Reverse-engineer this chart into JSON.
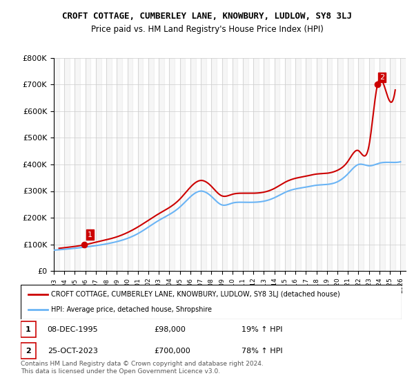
{
  "title": "CROFT COTTAGE, CUMBERLEY LANE, KNOWBURY, LUDLOW, SY8 3LJ",
  "subtitle": "Price paid vs. HM Land Registry's House Price Index (HPI)",
  "ylabel": "",
  "ylim": [
    0,
    800000
  ],
  "yticks": [
    0,
    100000,
    200000,
    300000,
    400000,
    500000,
    600000,
    700000,
    800000
  ],
  "ytick_labels": [
    "£0",
    "£100K",
    "£200K",
    "£300K",
    "£400K",
    "£500K",
    "£600K",
    "£700K",
    "£800K"
  ],
  "xlim_start": 1993.0,
  "xlim_end": 2026.5,
  "xticks": [
    1993,
    1994,
    1995,
    1996,
    1997,
    1998,
    1999,
    2000,
    2001,
    2002,
    2003,
    2004,
    2005,
    2006,
    2007,
    2008,
    2009,
    2010,
    2011,
    2012,
    2013,
    2014,
    2015,
    2016,
    2017,
    2018,
    2019,
    2020,
    2021,
    2022,
    2023,
    2024,
    2025,
    2026
  ],
  "hpi_line_color": "#6ab4f5",
  "price_line_color": "#cc0000",
  "marker_color": "#cc0000",
  "point1_x": 1995.92,
  "point1_y": 98000,
  "point2_x": 2023.81,
  "point2_y": 700000,
  "legend_label_red": "CROFT COTTAGE, CUMBERLEY LANE, KNOWBURY, LUDLOW, SY8 3LJ (detached house)",
  "legend_label_blue": "HPI: Average price, detached house, Shropshire",
  "table_row1": [
    "1",
    "08-DEC-1995",
    "£98,000",
    "19% ↑ HPI"
  ],
  "table_row2": [
    "2",
    "25-OCT-2023",
    "£700,000",
    "78% ↑ HPI"
  ],
  "footer1": "Contains HM Land Registry data © Crown copyright and database right 2024.",
  "footer2": "This data is licensed under the Open Government Licence v3.0.",
  "bg_color": "#ffffff",
  "grid_color": "#cccccc",
  "hatch_color": "#e8e8e8"
}
